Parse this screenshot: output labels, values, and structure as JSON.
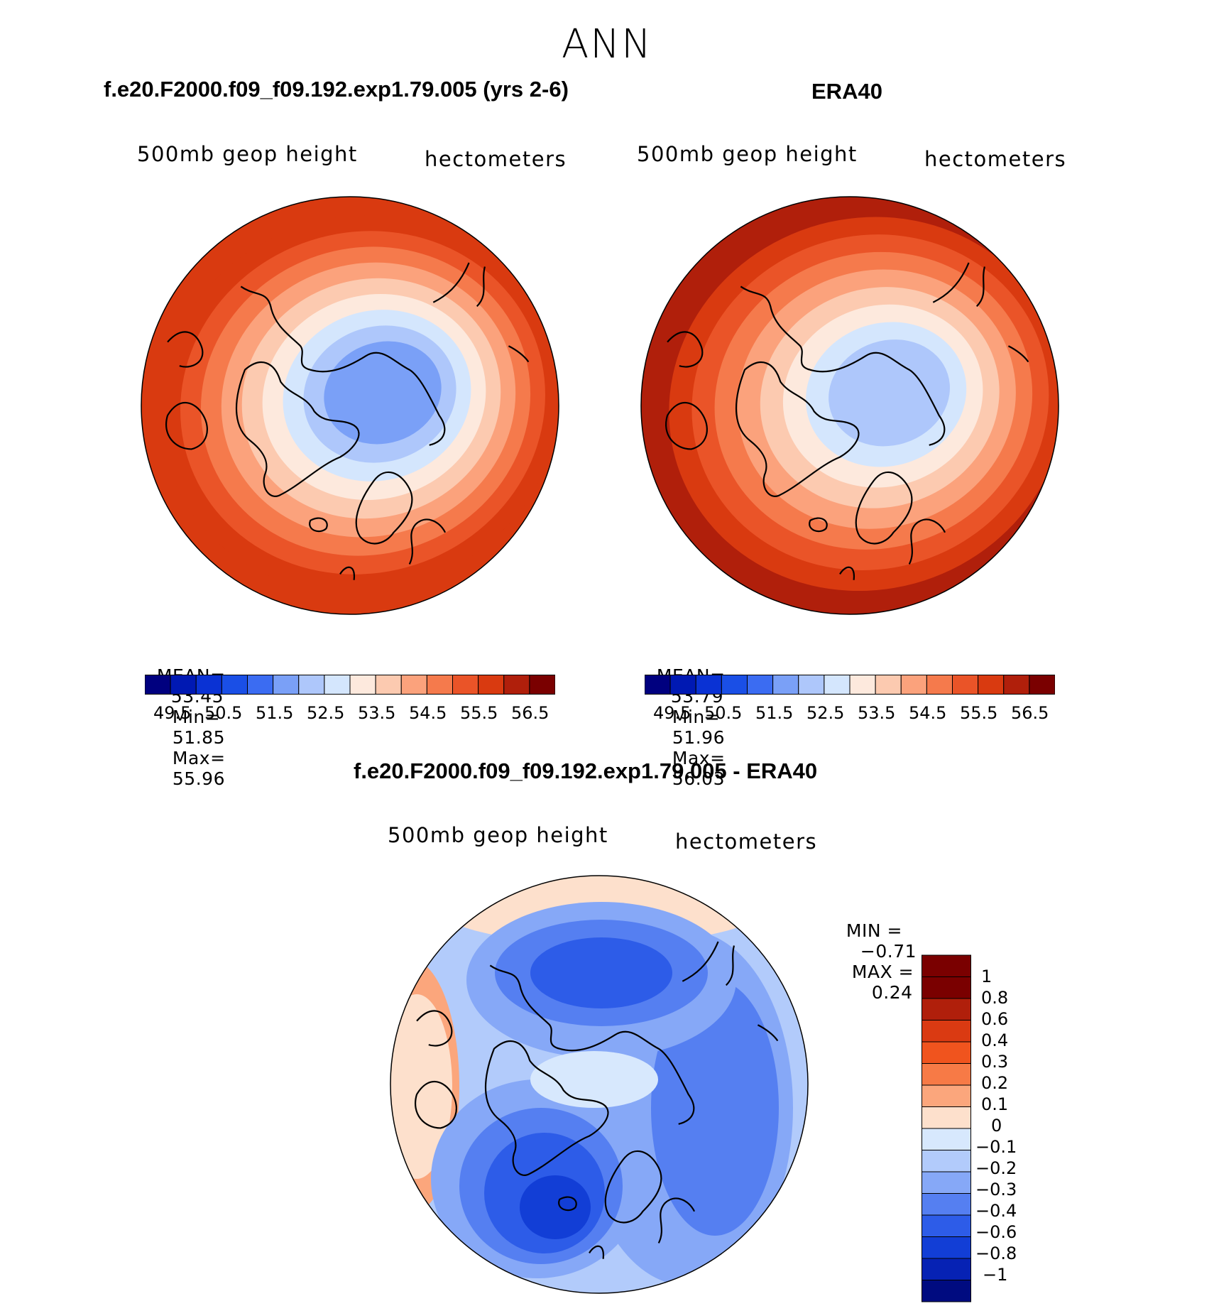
{
  "title": "ANN",
  "chart_data": [
    {
      "type": "heatmap",
      "projection": "north-polar-stereographic",
      "title": "f.e20.F2000.f09_f09.192.exp1.79.005 (yrs 2-6)",
      "variable_label": "500mb geop height",
      "units_label": "hectometers",
      "stats": {
        "mean_label": "MEAN=",
        "mean": "53.45",
        "min_label": "Min=",
        "min": "51.85",
        "max_label": "Max=",
        "max": "55.96"
      },
      "levels": [
        "49.5",
        "50.5",
        "51.5",
        "52.5",
        "53.5",
        "54.5",
        "55.5",
        "56.5"
      ],
      "contour_bands": [
        55.5,
        55.0,
        54.5,
        54.0,
        53.5,
        53.0,
        52.5,
        52.0,
        51.5
      ],
      "min_value": 51.85,
      "max_value": 55.96
    },
    {
      "type": "heatmap",
      "projection": "north-polar-stereographic",
      "title": "ERA40",
      "variable_label": "500mb geop height",
      "units_label": "hectometers",
      "stats": {
        "mean_label": "MEAN=",
        "mean": "53.79",
        "min_label": "Min=",
        "min": "51.96",
        "max_label": "Max=",
        "max": "56.03"
      },
      "levels": [
        "49.5",
        "50.5",
        "51.5",
        "52.5",
        "53.5",
        "54.5",
        "55.5",
        "56.5"
      ],
      "contour_bands": [
        55.5,
        55.0,
        54.5,
        54.0,
        53.5,
        53.0,
        52.5,
        52.0
      ],
      "min_value": 51.96,
      "max_value": 56.03
    },
    {
      "type": "heatmap",
      "projection": "north-polar-stereographic",
      "title": "f.e20.F2000.f09_f09.192.exp1.79.005 - ERA40",
      "variable_label": "500mb geop height",
      "units_label": "hectometers",
      "stats": {
        "min_label": "MIN =",
        "min": "−0.71",
        "max_label": "MAX =",
        "max": "0.24"
      },
      "levels": [
        "1",
        "0.8",
        "0.6",
        "0.4",
        "0.3",
        "0.2",
        "0.1",
        "0",
        "−0.1",
        "−0.2",
        "−0.3",
        "−0.4",
        "−0.6",
        "−0.8",
        "−1"
      ],
      "min_value": -0.71,
      "max_value": 0.24
    }
  ],
  "colormaps": {
    "abs16": [
      "#00007f",
      "#0019b3",
      "#0a32d4",
      "#1a4fe6",
      "#3b6cf2",
      "#7aa0f7",
      "#aec7fb",
      "#d4e6fd",
      "#fde9dd",
      "#fccab0",
      "#fba27c",
      "#f57a4c",
      "#ea5428",
      "#d93a10",
      "#b01f0b",
      "#7a0000"
    ],
    "diff16": [
      "#7a0000",
      "#b01f0b",
      "#da3a12",
      "#f0541e",
      "#f77a46",
      "#fba67c",
      "#fde0cc",
      "#d7e8fd",
      "#b2cbfb",
      "#86a8f7",
      "#557ff1",
      "#2d5ce8",
      "#123ed6",
      "#0622b4",
      "#000b80"
    ]
  }
}
